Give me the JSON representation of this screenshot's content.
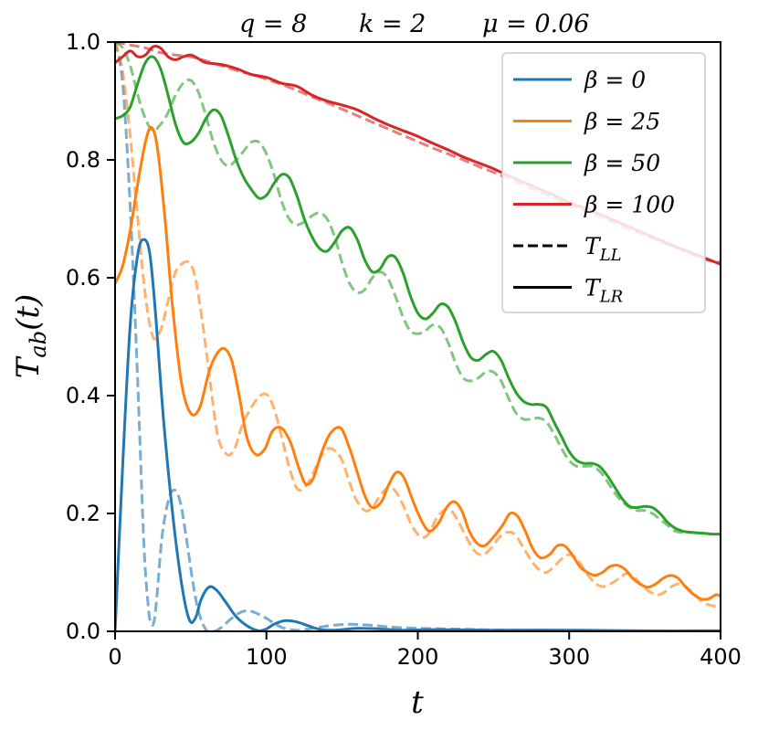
{
  "chart_data": {
    "type": "line",
    "title_parts": [
      "q = 8",
      "k = 2",
      "μ = 0.06"
    ],
    "xlabel": "t",
    "ylabel_main": "T",
    "ylabel_sub": "ab",
    "ylabel_tail": "(t)",
    "xlim": [
      0,
      400
    ],
    "ylim": [
      0,
      1.0
    ],
    "x_ticks": [
      0,
      100,
      200,
      300,
      400
    ],
    "x_tick_labels": [
      "0",
      "100",
      "200",
      "300",
      "400"
    ],
    "y_ticks": [
      0.0,
      0.2,
      0.4,
      0.6,
      0.8,
      1.0
    ],
    "y_tick_labels": [
      "0.0",
      "0.2",
      "0.4",
      "0.6",
      "0.8",
      "1.0"
    ],
    "grid": false,
    "legend_position": "top-right",
    "legend": [
      {
        "label": "β = 0",
        "color": "#1f77b4",
        "style": "solid"
      },
      {
        "label": "β = 25",
        "color": "#ff7f0e",
        "style": "solid"
      },
      {
        "label": "β = 50",
        "color": "#2ca02c",
        "style": "solid"
      },
      {
        "label": "β = 100",
        "color": "#d62728",
        "style": "solid"
      },
      {
        "label": "T",
        "sub": "LL",
        "color": "#000000",
        "style": "dashed"
      },
      {
        "label": "T",
        "sub": "LR",
        "color": "#000000",
        "style": "solid"
      }
    ],
    "series": [
      {
        "color": "#1f77b4",
        "style": "solid",
        "kind": "T_LR",
        "beta": 0,
        "x": [
          0,
          5,
          10,
          15,
          19,
          23,
          27,
          32,
          38,
          44,
          49,
          53,
          57,
          62,
          67,
          73,
          80,
          88,
          95,
          100,
          105,
          112,
          120,
          128,
          136,
          145,
          160,
          175,
          190,
          210,
          250,
          300,
          350,
          400
        ],
        "y": [
          0.0,
          0.28,
          0.52,
          0.64,
          0.665,
          0.64,
          0.53,
          0.36,
          0.2,
          0.08,
          0.02,
          0.022,
          0.055,
          0.075,
          0.07,
          0.05,
          0.025,
          0.008,
          0.001,
          0.004,
          0.012,
          0.018,
          0.016,
          0.009,
          0.003,
          0.002,
          0.005,
          0.004,
          0.002,
          0.003,
          0.002,
          0.002,
          0.001,
          0.001
        ]
      },
      {
        "color": "#1f77b4",
        "style": "dashed",
        "kind": "T_LL",
        "beta": 0,
        "x": [
          0,
          5,
          10,
          15,
          19,
          22,
          24,
          26,
          28,
          31,
          35,
          39,
          43,
          47,
          51,
          55,
          60,
          65,
          70,
          76,
          82,
          88,
          94,
          100,
          106,
          112,
          120,
          128,
          140,
          155,
          170,
          190,
          220,
          260,
          300,
          400
        ],
        "y": [
          1.0,
          0.93,
          0.72,
          0.42,
          0.15,
          0.04,
          0.012,
          0.02,
          0.07,
          0.16,
          0.22,
          0.24,
          0.22,
          0.16,
          0.09,
          0.035,
          0.003,
          0.0,
          0.006,
          0.02,
          0.031,
          0.035,
          0.03,
          0.022,
          0.012,
          0.005,
          0.002,
          0.004,
          0.009,
          0.012,
          0.01,
          0.006,
          0.004,
          0.002,
          0.001,
          0.0
        ]
      },
      {
        "color": "#ff7f0e",
        "style": "solid",
        "kind": "T_LR",
        "beta": 25,
        "x": [
          0,
          5,
          10,
          15,
          20,
          24,
          28,
          33,
          38,
          44,
          50,
          56,
          62,
          67,
          72,
          77,
          82,
          87,
          93,
          99,
          104,
          110,
          116,
          121,
          126,
          131,
          136,
          142,
          149,
          155,
          160,
          165,
          170,
          176,
          181,
          186,
          191,
          197,
          203,
          208,
          214,
          219,
          224,
          229,
          234,
          239,
          244,
          250,
          256,
          261,
          266,
          271,
          276,
          281,
          287,
          292,
          297,
          302,
          307,
          312,
          317,
          322,
          327,
          332,
          337,
          342,
          347,
          352,
          357,
          362,
          367,
          372,
          377,
          382,
          387,
          392,
          397,
          400
        ],
        "y": [
          0.59,
          0.62,
          0.68,
          0.76,
          0.83,
          0.855,
          0.82,
          0.7,
          0.55,
          0.42,
          0.37,
          0.38,
          0.44,
          0.47,
          0.48,
          0.46,
          0.4,
          0.33,
          0.3,
          0.31,
          0.34,
          0.345,
          0.32,
          0.28,
          0.25,
          0.26,
          0.3,
          0.335,
          0.345,
          0.31,
          0.27,
          0.23,
          0.21,
          0.22,
          0.25,
          0.27,
          0.26,
          0.22,
          0.185,
          0.17,
          0.185,
          0.21,
          0.22,
          0.205,
          0.17,
          0.15,
          0.145,
          0.16,
          0.18,
          0.2,
          0.195,
          0.17,
          0.14,
          0.125,
          0.13,
          0.145,
          0.145,
          0.13,
          0.11,
          0.1,
          0.095,
          0.1,
          0.11,
          0.112,
          0.105,
          0.09,
          0.08,
          0.075,
          0.08,
          0.09,
          0.095,
          0.09,
          0.075,
          0.063,
          0.055,
          0.055,
          0.062,
          0.06
        ]
      },
      {
        "color": "#ff7f0e",
        "style": "dashed",
        "kind": "T_LL",
        "beta": 25,
        "x": [
          0,
          5,
          10,
          15,
          20,
          25,
          30,
          35,
          40,
          45,
          49,
          53,
          58,
          63,
          68,
          74,
          79,
          84,
          90,
          96,
          101,
          106,
          111,
          116,
          121,
          127,
          133,
          138,
          143,
          149,
          154,
          159,
          165,
          170,
          175,
          181,
          186,
          191,
          196,
          202,
          207,
          212,
          217,
          222,
          227,
          233,
          238,
          243,
          248,
          254,
          259,
          264,
          269,
          275,
          280,
          285,
          290,
          296,
          301,
          306,
          311,
          317,
          322,
          327,
          333,
          338,
          343,
          348,
          354,
          359,
          364,
          369,
          374,
          379,
          384,
          389,
          394,
          400
        ],
        "y": [
          1.0,
          0.95,
          0.84,
          0.7,
          0.57,
          0.5,
          0.51,
          0.56,
          0.61,
          0.625,
          0.625,
          0.6,
          0.52,
          0.42,
          0.33,
          0.3,
          0.31,
          0.35,
          0.38,
          0.4,
          0.4,
          0.37,
          0.32,
          0.27,
          0.24,
          0.25,
          0.28,
          0.305,
          0.31,
          0.295,
          0.26,
          0.225,
          0.205,
          0.21,
          0.23,
          0.245,
          0.235,
          0.21,
          0.18,
          0.16,
          0.165,
          0.19,
          0.205,
          0.205,
          0.185,
          0.155,
          0.135,
          0.13,
          0.14,
          0.16,
          0.168,
          0.165,
          0.145,
          0.12,
          0.105,
          0.1,
          0.11,
          0.125,
          0.13,
          0.12,
          0.1,
          0.082,
          0.076,
          0.08,
          0.09,
          0.098,
          0.092,
          0.078,
          0.066,
          0.062,
          0.068,
          0.078,
          0.08,
          0.072,
          0.06,
          0.048,
          0.044,
          0.04
        ]
      },
      {
        "color": "#2ca02c",
        "style": "solid",
        "kind": "T_LR",
        "beta": 50,
        "x": [
          0,
          5,
          10,
          15,
          20,
          25,
          30,
          35,
          40,
          45,
          50,
          55,
          60,
          65,
          70,
          75,
          80,
          85,
          90,
          95,
          100,
          105,
          110,
          115,
          120,
          125,
          130,
          135,
          140,
          145,
          150,
          155,
          160,
          165,
          170,
          175,
          180,
          185,
          190,
          195,
          200,
          205,
          210,
          215,
          220,
          225,
          230,
          235,
          240,
          245,
          250,
          255,
          260,
          265,
          270,
          275,
          280,
          285,
          290,
          295,
          300,
          305,
          310,
          315,
          320,
          325,
          330,
          335,
          340,
          345,
          350,
          355,
          360,
          365,
          370,
          375,
          380,
          385,
          390,
          395,
          400
        ],
        "y": [
          0.87,
          0.875,
          0.89,
          0.93,
          0.965,
          0.975,
          0.955,
          0.91,
          0.86,
          0.83,
          0.83,
          0.845,
          0.87,
          0.885,
          0.875,
          0.84,
          0.8,
          0.77,
          0.75,
          0.735,
          0.74,
          0.76,
          0.775,
          0.77,
          0.74,
          0.7,
          0.67,
          0.65,
          0.645,
          0.66,
          0.68,
          0.685,
          0.665,
          0.63,
          0.61,
          0.615,
          0.635,
          0.635,
          0.61,
          0.57,
          0.54,
          0.53,
          0.54,
          0.555,
          0.55,
          0.525,
          0.49,
          0.465,
          0.46,
          0.47,
          0.475,
          0.46,
          0.43,
          0.405,
          0.39,
          0.385,
          0.385,
          0.38,
          0.355,
          0.33,
          0.305,
          0.29,
          0.285,
          0.285,
          0.28,
          0.265,
          0.245,
          0.225,
          0.212,
          0.21,
          0.212,
          0.21,
          0.2,
          0.185,
          0.175,
          0.17,
          0.168,
          0.167,
          0.166,
          0.165,
          0.165
        ]
      },
      {
        "color": "#2ca02c",
        "style": "dashed",
        "kind": "T_LL",
        "beta": 50,
        "x": [
          0,
          5,
          10,
          15,
          20,
          25,
          30,
          35,
          40,
          45,
          50,
          55,
          60,
          65,
          70,
          75,
          80,
          85,
          90,
          95,
          100,
          105,
          110,
          115,
          120,
          125,
          130,
          135,
          140,
          145,
          150,
          155,
          160,
          165,
          170,
          175,
          180,
          185,
          190,
          195,
          200,
          205,
          210,
          215,
          220,
          225,
          230,
          235,
          240,
          245,
          250,
          255,
          260,
          265,
          270,
          275,
          280,
          285,
          290,
          295,
          300,
          305,
          310,
          315,
          320,
          325,
          330,
          335,
          340,
          345,
          350,
          355,
          360,
          365,
          370,
          375,
          380,
          385,
          390,
          395,
          400
        ],
        "y": [
          1.0,
          0.99,
          0.96,
          0.91,
          0.87,
          0.85,
          0.86,
          0.88,
          0.91,
          0.93,
          0.935,
          0.915,
          0.875,
          0.83,
          0.8,
          0.79,
          0.8,
          0.815,
          0.83,
          0.83,
          0.81,
          0.775,
          0.73,
          0.7,
          0.69,
          0.695,
          0.705,
          0.71,
          0.7,
          0.67,
          0.625,
          0.59,
          0.575,
          0.58,
          0.6,
          0.61,
          0.6,
          0.57,
          0.535,
          0.51,
          0.505,
          0.51,
          0.52,
          0.515,
          0.49,
          0.455,
          0.43,
          0.425,
          0.43,
          0.44,
          0.44,
          0.425,
          0.395,
          0.37,
          0.36,
          0.36,
          0.362,
          0.355,
          0.335,
          0.31,
          0.29,
          0.28,
          0.28,
          0.28,
          0.272,
          0.255,
          0.235,
          0.22,
          0.21,
          0.205,
          0.205,
          0.2,
          0.19,
          0.18,
          0.17,
          0.168,
          0.168,
          0.167,
          0.166,
          0.165,
          0.165
        ]
      },
      {
        "color": "#d62728",
        "style": "solid",
        "kind": "T_LR",
        "beta": 100,
        "x": [
          0,
          5,
          10,
          15,
          20,
          25,
          30,
          35,
          40,
          45,
          50,
          55,
          60,
          70,
          80,
          90,
          100,
          110,
          120,
          130,
          140,
          150,
          160,
          170,
          180,
          190,
          200,
          210,
          220,
          230,
          240,
          250,
          260,
          270,
          280,
          290,
          300,
          310,
          320,
          330,
          340,
          350,
          360,
          370,
          380,
          390,
          400
        ],
        "y": [
          0.965,
          0.975,
          0.985,
          0.975,
          0.978,
          0.992,
          0.99,
          0.975,
          0.97,
          0.975,
          0.978,
          0.972,
          0.965,
          0.962,
          0.955,
          0.945,
          0.94,
          0.93,
          0.925,
          0.91,
          0.9,
          0.893,
          0.885,
          0.872,
          0.86,
          0.85,
          0.84,
          0.828,
          0.817,
          0.805,
          0.795,
          0.785,
          0.773,
          0.762,
          0.751,
          0.74,
          0.728,
          0.718,
          0.708,
          0.697,
          0.686,
          0.675,
          0.664,
          0.653,
          0.643,
          0.633,
          0.623
        ]
      },
      {
        "color": "#d62728",
        "style": "dashed",
        "kind": "T_LL",
        "beta": 100,
        "x": [
          0,
          10,
          20,
          30,
          40,
          50,
          60,
          70,
          80,
          90,
          100,
          110,
          120,
          130,
          140,
          150,
          160,
          170,
          180,
          190,
          200,
          210,
          220,
          230,
          240,
          250,
          260,
          270,
          280,
          290,
          300,
          310,
          320,
          330,
          340,
          350,
          360,
          370,
          380,
          390,
          400
        ],
        "y": [
          1.0,
          0.995,
          0.99,
          0.982,
          0.978,
          0.975,
          0.968,
          0.96,
          0.952,
          0.945,
          0.937,
          0.928,
          0.918,
          0.907,
          0.897,
          0.886,
          0.875,
          0.864,
          0.853,
          0.842,
          0.831,
          0.82,
          0.81,
          0.8,
          0.789,
          0.779,
          0.768,
          0.757,
          0.746,
          0.735,
          0.724,
          0.714,
          0.703,
          0.693,
          0.682,
          0.672,
          0.662,
          0.652,
          0.641,
          0.631,
          0.626
        ]
      }
    ]
  }
}
